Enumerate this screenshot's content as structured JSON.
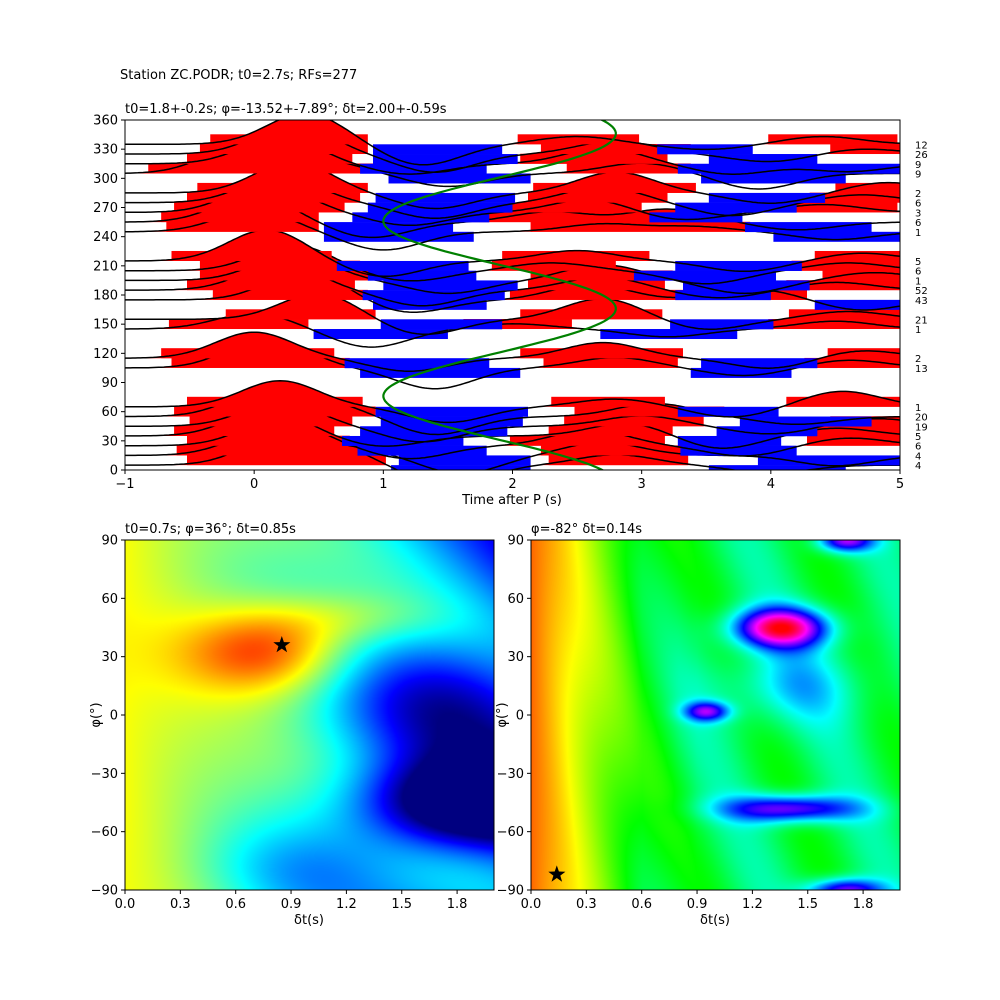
{
  "suptitle": "Station ZC.PODR; t0=2.7s; RFs=277",
  "chart_data": [
    {
      "type": "wiggle",
      "title": "t0=1.8+-0.2s; φ=-13.52+-7.89°; δt=2.00+-0.59s",
      "xlabel": "Time after P (s)",
      "ylabel": "",
      "xlim": [
        -1,
        5
      ],
      "ylim": [
        0,
        360
      ],
      "xticks": [
        "−1",
        "0",
        "1",
        "2",
        "3",
        "4",
        "5"
      ],
      "yticks": [
        "0",
        "30",
        "60",
        "90",
        "120",
        "150",
        "180",
        "210",
        "240",
        "270",
        "300",
        "330",
        "360"
      ],
      "traces": [
        {
          "baz": 5,
          "count": "4",
          "peaks": [
            [
              0.2,
              1.0
            ],
            [
              0.6,
              0.6
            ],
            [
              1.5,
              -0.8
            ],
            [
              2.8,
              0.4
            ],
            [
              4.0,
              -0.3
            ]
          ]
        },
        {
          "baz": 15,
          "count": "4",
          "peaks": [
            [
              0.1,
              0.9
            ],
            [
              0.7,
              0.3
            ],
            [
              1.6,
              -0.7
            ],
            [
              2.7,
              0.5
            ],
            [
              4.5,
              -0.4
            ]
          ]
        },
        {
          "baz": 25,
          "count": "6",
          "peaks": [
            [
              0.2,
              1.0
            ],
            [
              1.2,
              -0.5
            ],
            [
              2.6,
              0.6
            ],
            [
              3.8,
              -0.4
            ],
            [
              4.6,
              0.3
            ]
          ]
        },
        {
          "baz": 35,
          "count": "5",
          "peaks": [
            [
              0.1,
              1.0
            ],
            [
              1.0,
              -0.4
            ],
            [
              2.9,
              0.5
            ],
            [
              3.6,
              -0.5
            ],
            [
              4.5,
              0.3
            ]
          ]
        },
        {
          "baz": 45,
          "count": "19",
          "peaks": [
            [
              0.2,
              0.9
            ],
            [
              1.3,
              -0.6
            ],
            [
              3.0,
              0.4
            ],
            [
              4.0,
              -0.3
            ],
            [
              4.8,
              0.3
            ]
          ]
        },
        {
          "baz": 55,
          "count": "20",
          "peaks": [
            [
              0.1,
              1.0
            ],
            [
              0.6,
              0.4
            ],
            [
              1.4,
              -0.7
            ],
            [
              3.1,
              0.5
            ],
            [
              4.2,
              -0.3
            ]
          ]
        },
        {
          "baz": 65,
          "count": "1",
          "peaks": [
            [
              0.2,
              1.0
            ],
            [
              1.5,
              -0.6
            ],
            [
              2.8,
              0.3
            ],
            [
              3.7,
              -0.4
            ],
            [
              4.55,
              0.6
            ]
          ]
        },
        {
          "baz": 105,
          "count": "13",
          "peaks": [
            [
              0.1,
              1.2
            ],
            [
              1.4,
              -0.8
            ],
            [
              2.8,
              0.4
            ],
            [
              3.8,
              -0.3
            ],
            [
              4.6,
              0.3
            ]
          ]
        },
        {
          "baz": 115,
          "count": "2",
          "peaks": [
            [
              0.0,
              1.0
            ],
            [
              1.2,
              -0.5
            ],
            [
              2.7,
              0.6
            ],
            [
              4.0,
              -0.4
            ],
            [
              4.7,
              0.3
            ]
          ]
        },
        {
          "baz": 145,
          "count": "1",
          "peaks": [
            [
              0.0,
              0.6
            ],
            [
              0.9,
              -0.7
            ],
            [
              2.0,
              0.2
            ],
            [
              3.2,
              -0.3
            ],
            [
              4.5,
              0.3
            ]
          ]
        },
        {
          "baz": 155,
          "count": "21",
          "peaks": [
            [
              0.5,
              1.0
            ],
            [
              1.3,
              -0.6
            ],
            [
              2.7,
              0.8
            ],
            [
              3.5,
              -0.4
            ],
            [
              4.6,
              0.3
            ]
          ]
        },
        {
          "baz": 175,
          "count": "43",
          "peaks": [
            [
              0.4,
              1.1
            ],
            [
              1.2,
              -0.5
            ],
            [
              2.6,
              0.6
            ],
            [
              3.9,
              0.4
            ],
            [
              4.7,
              -0.4
            ]
          ]
        },
        {
          "baz": 185,
          "count": "52",
          "peaks": [
            [
              0.2,
              1.0
            ],
            [
              1.3,
              -0.6
            ],
            [
              2.7,
              0.5
            ],
            [
              3.6,
              -0.3
            ],
            [
              4.5,
              0.3
            ]
          ]
        },
        {
          "baz": 195,
          "count": "1",
          "peaks": [
            [
              0.3,
              1.0
            ],
            [
              1.5,
              -0.5
            ],
            [
              2.7,
              0.6
            ],
            [
              3.8,
              -0.5
            ],
            [
              4.8,
              0.3
            ]
          ]
        },
        {
          "baz": 205,
          "count": "6",
          "peaks": [
            [
              0.3,
              1.0
            ],
            [
              1.2,
              -0.4
            ],
            [
              2.3,
              0.3
            ],
            [
              3.5,
              -0.5
            ],
            [
              4.6,
              0.3
            ]
          ]
        },
        {
          "baz": 215,
          "count": "5",
          "peaks": [
            [
              0.1,
              1.2
            ],
            [
              1.0,
              -0.6
            ],
            [
              2.5,
              0.4
            ],
            [
              3.8,
              -0.4
            ],
            [
              4.7,
              0.3
            ]
          ]
        },
        {
          "baz": 245,
          "count": "1",
          "peaks": [
            [
              0.0,
              0.8
            ],
            [
              1.0,
              -0.7
            ],
            [
              2.7,
              0.3
            ],
            [
              3.4,
              0.2
            ],
            [
              4.5,
              -0.3
            ]
          ]
        },
        {
          "baz": 255,
          "count": "6",
          "peaks": [
            [
              0.0,
              1.0
            ],
            [
              0.9,
              -0.6
            ],
            [
              2.3,
              0.4
            ],
            [
              3.2,
              0.5
            ],
            [
              4.2,
              -0.3
            ]
          ]
        },
        {
          "baz": 265,
          "count": "3",
          "peaks": [
            [
              0.1,
              1.1
            ],
            [
              1.2,
              -0.5
            ],
            [
              2.6,
              0.5
            ],
            [
              3.3,
              -0.3
            ],
            [
              4.4,
              0.3
            ]
          ]
        },
        {
          "baz": 275,
          "count": "6",
          "peaks": [
            [
              0.2,
              1.0
            ],
            [
              1.4,
              -0.6
            ],
            [
              2.7,
              0.6
            ],
            [
              3.7,
              -0.5
            ],
            [
              4.7,
              0.3
            ]
          ]
        },
        {
          "baz": 285,
          "count": "2",
          "peaks": [
            [
              0.3,
              1.2
            ],
            [
              1.4,
              -0.6
            ],
            [
              2.8,
              0.8
            ],
            [
              4.0,
              -0.4
            ],
            [
              4.9,
              0.4
            ]
          ]
        },
        {
          "baz": 305,
          "count": "9",
          "peaks": [
            [
              -0.1,
              1.0
            ],
            [
              0.5,
              0.5
            ],
            [
              1.5,
              -0.5
            ],
            [
              3.0,
              0.4
            ],
            [
              3.9,
              -0.6
            ]
          ]
        },
        {
          "baz": 315,
          "count": "9",
          "peaks": [
            [
              0.2,
              1.0
            ],
            [
              1.2,
              -0.4
            ],
            [
              2.7,
              0.6
            ],
            [
              3.7,
              -0.4
            ],
            [
              4.6,
              -0.3
            ]
          ]
        },
        {
          "baz": 325,
          "count": "26",
          "peaks": [
            [
              0.3,
              1.1
            ],
            [
              1.4,
              -0.7
            ],
            [
              2.8,
              0.5
            ],
            [
              4.0,
              -0.3
            ],
            [
              4.7,
              0.2
            ]
          ]
        },
        {
          "baz": 335,
          "count": "12",
          "peaks": [
            [
              0.4,
              1.2
            ],
            [
              1.3,
              -0.8
            ],
            [
              2.5,
              0.3
            ],
            [
              3.5,
              -0.2
            ],
            [
              4.4,
              0.3
            ]
          ]
        }
      ],
      "t0_curve": {
        "center": 1.9,
        "amplitude": 0.9,
        "phase_deg": 166,
        "color": "#008000"
      }
    },
    {
      "type": "heatmap",
      "title": "t0=0.7s; φ=36°; δt=0.85s",
      "xlabel": "δt(s)",
      "ylabel": "φ(°)",
      "xlim": [
        0,
        2
      ],
      "ylim": [
        -90,
        90
      ],
      "xticks": [
        "0.0",
        "0.3",
        "0.6",
        "0.9",
        "1.2",
        "1.5",
        "1.8"
      ],
      "yticks": [
        "−90",
        "−60",
        "−30",
        "0",
        "30",
        "60",
        "90"
      ],
      "colormap": "jet",
      "best": {
        "dt": 0.85,
        "phi": 36
      }
    },
    {
      "type": "heatmap",
      "title": "φ=-82° δt=0.14s",
      "xlabel": "δt(s)",
      "ylabel": "φ(°)",
      "xlim": [
        0,
        2
      ],
      "ylim": [
        -90,
        90
      ],
      "xticks": [
        "0.0",
        "0.3",
        "0.6",
        "0.9",
        "1.2",
        "1.5",
        "1.8"
      ],
      "yticks": [
        "−90",
        "−60",
        "−30",
        "0",
        "30",
        "60",
        "90"
      ],
      "colormap": "hsv",
      "best": {
        "dt": 0.14,
        "phi": -82
      }
    }
  ]
}
